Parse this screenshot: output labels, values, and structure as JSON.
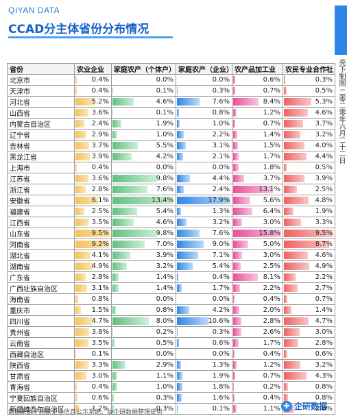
{
  "brand": "QIYAN DATA",
  "title": "CCAD分主体省份分布情况",
  "side_note": "亮下制图 二零二零年六月二十二日",
  "footer": "数据来源于国家企业信息公示系统，由企研数据整理提供",
  "logo_text": "企研数据",
  "columns": [
    "省份",
    "农业企业",
    "家庭农产（个体户）",
    "家庭农产（企业）",
    "农产品加工业",
    "农民专业合作社"
  ],
  "maxima": [
    9.5,
    13.4,
    17.9,
    15.8,
    9.5
  ],
  "rows": [
    [
      "北京市",
      "0.4%",
      "0.0%",
      "0.0%",
      "0.6%",
      "0.3%"
    ],
    [
      "天津市",
      "0.4%",
      "0.1%",
      "0.3%",
      "0.7%",
      "0.5%"
    ],
    [
      "河北省",
      "5.2%",
      "4.6%",
      "7.6%",
      "8.4%",
      "5.3%"
    ],
    [
      "山西省",
      "3.6%",
      "0.1%",
      "0.8%",
      "1.2%",
      "4.6%"
    ],
    [
      "内蒙古自治区",
      "2.4%",
      "1.9%",
      "1.0%",
      "0.7%",
      "3.7%"
    ],
    [
      "辽宁省",
      "2.9%",
      "1.0%",
      "2.2%",
      "1.4%",
      "3.2%"
    ],
    [
      "吉林省",
      "3.7%",
      "5.5%",
      "3.1%",
      "1.5%",
      "4.0%"
    ],
    [
      "黑龙江省",
      "3.9%",
      "4.2%",
      "2.1%",
      "1.7%",
      "4.4%"
    ],
    [
      "上海市",
      "0.4%",
      "0.0%",
      "0.0%",
      "1.8%",
      "0.5%"
    ],
    [
      "江苏省",
      "3.6%",
      "9.8%",
      "4.4%",
      "3.7%",
      "3.9%"
    ],
    [
      "浙江省",
      "2.8%",
      "7.6%",
      "2.4%",
      "13.1%",
      "2.5%"
    ],
    [
      "安徽省",
      "6.1%",
      "13.4%",
      "17.9%",
      "5.6%",
      "4.8%"
    ],
    [
      "福建省",
      "2.5%",
      "5.4%",
      "1.3%",
      "6.4%",
      "1.9%"
    ],
    [
      "江西省",
      "3.5%",
      "4.6%",
      "3.2%",
      "3.0%",
      "3.3%"
    ],
    [
      "山东省",
      "9.5%",
      "9.8%",
      "7.6%",
      "15.8%",
      "9.5%"
    ],
    [
      "河南省",
      "9.2%",
      "7.0%",
      "9.0%",
      "5.0%",
      "8.7%"
    ],
    [
      "湖北省",
      "4.1%",
      "3.9%",
      "7.1%",
      "3.0%",
      "4.6%"
    ],
    [
      "湖南省",
      "4.9%",
      "3.2%",
      "5.4%",
      "2.5%",
      "4.9%"
    ],
    [
      "广东省",
      "2.8%",
      "1.4%",
      "0.4%",
      "8.1%",
      "2.2%"
    ],
    [
      "广西壮族自治区",
      "3.1%",
      "1.4%",
      "1.7%",
      "2.2%",
      "2.7%"
    ],
    [
      "海南省",
      "0.8%",
      "0.0%",
      "0.0%",
      "0.4%",
      "0.7%"
    ],
    [
      "重庆市",
      "1.5%",
      "0.8%",
      "4.2%",
      "2.0%",
      "1.4%"
    ],
    [
      "四川省",
      "4.7%",
      "8.0%",
      "10.6%",
      "2.8%",
      "4.7%"
    ],
    [
      "贵州省",
      "3.8%",
      "0.2%",
      "0.3%",
      "2.6%",
      "3.0%"
    ],
    [
      "云南省",
      "3.5%",
      "0.5%",
      "0.6%",
      "1.7%",
      "2.8%"
    ],
    [
      "西藏自治区",
      "0.1%",
      "0.0%",
      "0.0%",
      "0.4%",
      "0.6%"
    ],
    [
      "陕西省",
      "3.3%",
      "2.9%",
      "1.3%",
      "1.2%",
      "3.2%"
    ],
    [
      "甘肃省",
      "3.0%",
      "1.1%",
      "1.9%",
      "0.7%",
      "4.3%"
    ],
    [
      "青海省",
      "0.4%",
      "1.0%",
      "1.8%",
      "0.2%",
      "0.8%"
    ],
    [
      "宁夏回族自治区",
      "0.6%",
      "0.3%",
      "1.6%",
      "0.4%",
      "0.8%"
    ],
    [
      "新疆维吾尔自治区",
      "1.2%",
      "0.3%",
      "0.1%",
      "1.1%",
      "2.0%"
    ]
  ]
}
